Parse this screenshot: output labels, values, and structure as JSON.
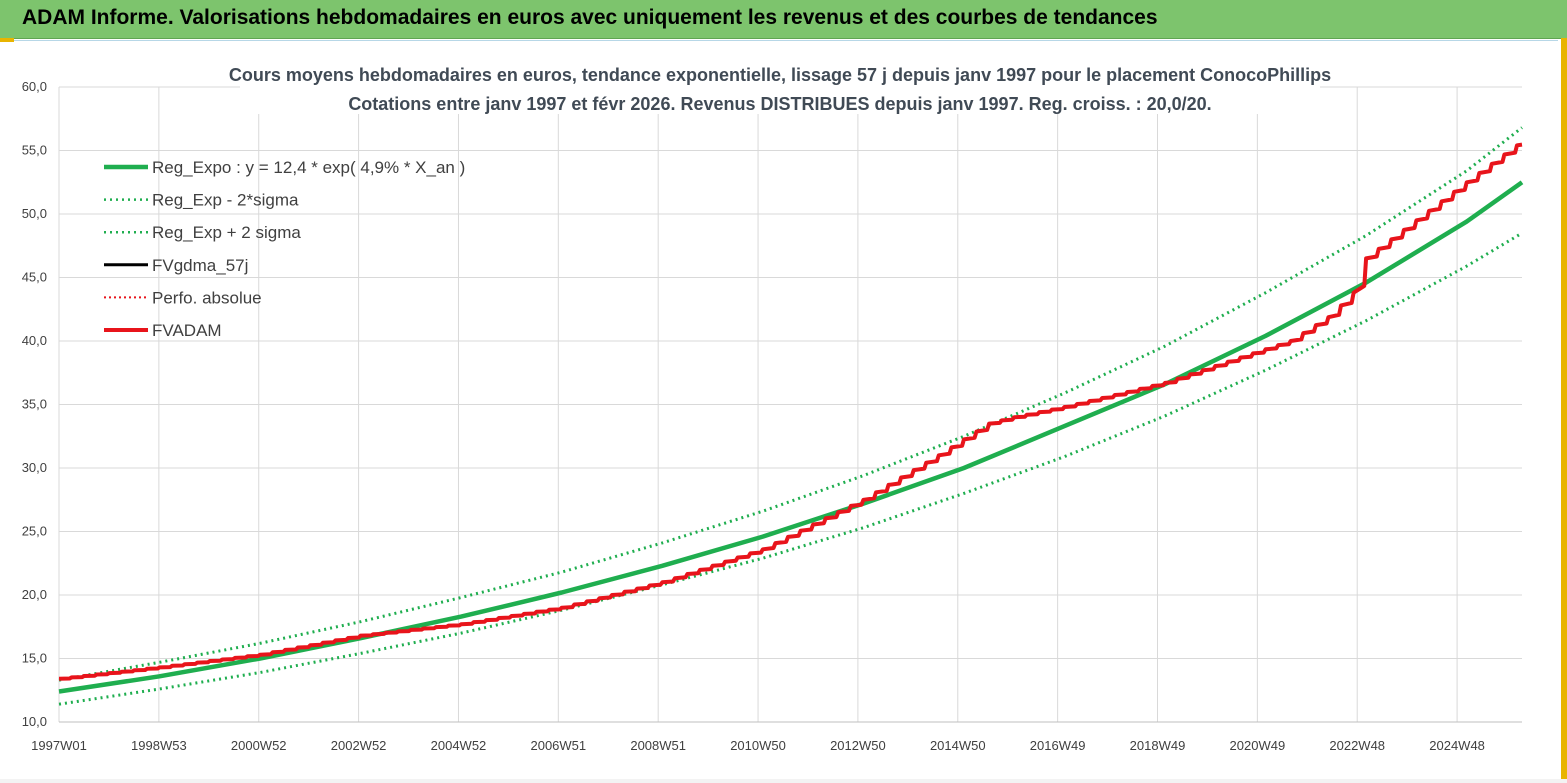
{
  "header": {
    "title": "ADAM Informe. Valorisations hebdomadaires en euros avec uniquement les revenus et des courbes de tendances"
  },
  "colors": {
    "header_bg": "#7dc46d",
    "trend": "#1fae4f",
    "band": "#1fae4f",
    "fvadam": "#e8141b",
    "fvgdma": "#000000",
    "perfo": "#e8141b",
    "accent": "#e8b400"
  },
  "chart_data": {
    "type": "line",
    "title": "Cours moyens hebdomadaires en euros, tendance exponentielle, lissage 57 j depuis janv 1997 pour le placement ConocoPhillips",
    "subtitle": "Cotations entre janv 1997 et févr 2026. Revenus DISTRIBUES depuis janv 1997. Reg. croiss. : 20,0/20.",
    "x_tick_labels": [
      "1997W01",
      "1998W53",
      "2000W52",
      "2002W52",
      "2004W52",
      "2006W51",
      "2008W51",
      "2010W50",
      "2012W50",
      "2014W50",
      "2016W49",
      "2018W49",
      "2020W49",
      "2022W48",
      "2024W48"
    ],
    "y_tick_labels": [
      "10,0",
      "15,0",
      "20,0",
      "25,0",
      "30,0",
      "35,0",
      "40,0",
      "45,0",
      "50,0",
      "55,0",
      "60,0"
    ],
    "ylim": [
      10,
      60
    ],
    "xlim": [
      1997.0,
      2026.1
    ],
    "grid": true,
    "legend_position": "top-left",
    "legend": [
      {
        "label": "Reg_Expo : y = 12,4 * exp( 4,9% *  X_an )",
        "style": "solid-thick",
        "color": "#1fae4f"
      },
      {
        "label": "Reg_Exp - 2*sigma",
        "style": "dotted",
        "color": "#1fae4f"
      },
      {
        "label": "Reg_Exp + 2 sigma",
        "style": "dotted",
        "color": "#1fae4f"
      },
      {
        "label": "FVgdma_57j",
        "style": "solid",
        "color": "#000000"
      },
      {
        "label": "Perfo. absolue",
        "style": "dotted",
        "color": "#e8141b"
      },
      {
        "label": "FVADAM",
        "style": "solid-thick",
        "color": "#e8141b"
      }
    ],
    "series": [
      {
        "name": "Reg_Expo : y = 12,4 * exp( 4,9% *  X_an )",
        "x": [
          1997.0,
          1999.0,
          2001.0,
          2003.0,
          2005.0,
          2007.0,
          2009.0,
          2011.0,
          2013.0,
          2015.0,
          2017.0,
          2019.0,
          2021.0,
          2023.0,
          2025.0,
          2026.1
        ],
        "y": [
          12.4,
          13.6,
          15.0,
          16.6,
          18.3,
          20.2,
          22.3,
          24.6,
          27.2,
          30.0,
          33.3,
          36.6,
          40.4,
          44.6,
          49.4,
          52.5
        ]
      },
      {
        "name": "Reg_Exp - 2*sigma",
        "x": [
          1997.0,
          1999.0,
          2001.0,
          2003.0,
          2005.0,
          2007.0,
          2009.0,
          2011.0,
          2013.0,
          2015.0,
          2017.0,
          2019.0,
          2021.0,
          2023.0,
          2025.0,
          2026.1
        ],
        "y": [
          11.4,
          12.6,
          13.9,
          15.4,
          17.0,
          18.8,
          20.8,
          22.9,
          25.3,
          28.0,
          30.9,
          34.1,
          37.7,
          41.6,
          45.9,
          48.5
        ]
      },
      {
        "name": "Reg_Exp + 2 sigma",
        "x": [
          1997.0,
          1999.0,
          2001.0,
          2003.0,
          2005.0,
          2007.0,
          2009.0,
          2011.0,
          2013.0,
          2015.0,
          2017.0,
          2019.0,
          2021.0,
          2023.0,
          2025.0,
          2026.1
        ],
        "y": [
          13.3,
          14.7,
          16.2,
          17.9,
          19.8,
          21.8,
          24.1,
          26.6,
          29.4,
          32.5,
          35.9,
          39.6,
          43.8,
          48.3,
          53.4,
          56.8
        ]
      },
      {
        "name": "FVADAM",
        "x": [
          1997.0,
          1999.0,
          2001.0,
          2003.0,
          2005.0,
          2007.0,
          2009.0,
          2011.0,
          2013.0,
          2014.5,
          2015.5,
          2016.0,
          2017.0,
          2019.0,
          2020.5,
          2021.5,
          2022.3,
          2022.8,
          2023.0,
          2024.0,
          2025.0,
          2026.1
        ],
        "y": [
          13.4,
          14.3,
          15.3,
          16.8,
          17.7,
          19.0,
          21.0,
          23.6,
          27.5,
          31.0,
          33.5,
          34.0,
          34.8,
          36.7,
          38.7,
          40.0,
          42.0,
          44.0,
          46.5,
          49.5,
          52.5,
          55.7
        ]
      }
    ]
  }
}
